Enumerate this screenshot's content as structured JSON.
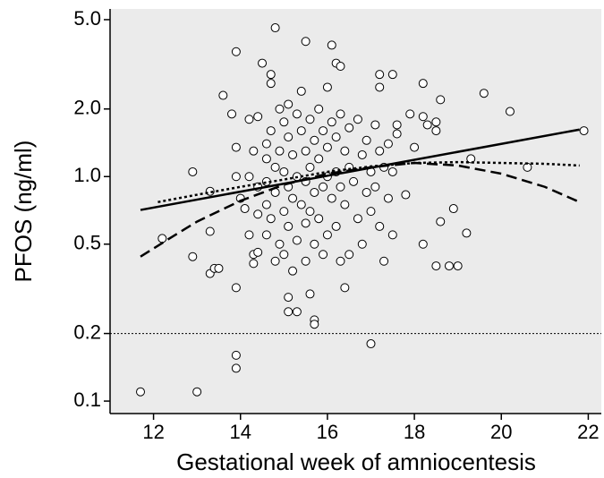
{
  "chart_data": {
    "type": "scatter",
    "x_label": "Gestational week of amniocentesis",
    "y_label": "PFOS (ng/ml)",
    "log_y": true,
    "xlim": [
      11.0,
      22.3
    ],
    "ylim": [
      0.088,
      5.58
    ],
    "xticks": [
      12,
      14,
      16,
      18,
      20,
      22
    ],
    "yticks": [
      {
        "value": 5.0,
        "label": "5.0"
      },
      {
        "value": 2.0,
        "label": "2.0"
      },
      {
        "value": 1.0,
        "label": "1.0"
      },
      0.5,
      0.2,
      0.1
    ],
    "background": "#ebebeb",
    "reference_line": 0.2,
    "x": [
      11.7,
      13.0,
      12.2,
      12.9,
      12.9,
      13.3,
      13.3,
      13.4,
      13.5,
      13.3,
      13.6,
      13.8,
      13.9,
      13.9,
      13.9,
      13.9,
      13.9,
      13.9,
      14.1,
      14.2,
      14.2,
      14.3,
      14.3,
      14.4,
      14.4,
      14.5,
      14.7,
      14.7,
      14.8,
      15.5,
      16.1,
      16.2,
      16.3,
      15.3,
      15.1,
      15.1,
      15.7,
      15.7,
      15.6,
      16.4,
      17.0,
      17.3,
      17.5,
      17.2,
      17.5,
      17.2,
      18.2,
      18.6,
      19.6,
      20.2,
      21.9,
      20.6,
      19.3,
      19.2,
      18.9,
      18.6,
      18.5,
      18.8,
      19.0,
      18.2,
      17.8,
      18.2,
      18.3,
      18.5,
      18.5,
      17.6,
      17.6,
      17.5,
      17.9,
      18.0,
      14.6,
      14.6,
      14.6,
      14.6,
      14.6,
      14.7,
      14.7,
      14.8,
      14.8,
      14.8,
      14.9,
      14.9,
      14.9,
      15.0,
      15.0,
      15.0,
      15.0,
      15.1,
      15.1,
      15.1,
      15.1,
      15.2,
      15.2,
      15.2,
      15.3,
      15.3,
      15.3,
      15.4,
      15.4,
      15.4,
      15.5,
      15.5,
      15.5,
      15.5,
      15.6,
      15.6,
      15.6,
      15.7,
      15.7,
      15.7,
      15.8,
      15.8,
      15.8,
      15.9,
      15.9,
      15.9,
      16.0,
      16.0,
      16.0,
      16.0,
      16.1,
      16.1,
      16.2,
      16.2,
      16.2,
      16.3,
      16.3,
      16.3,
      16.4,
      16.4,
      16.5,
      16.5,
      16.5,
      16.6,
      16.7,
      16.7,
      16.8,
      16.8,
      16.9,
      16.9,
      17.0,
      17.0,
      17.1,
      17.1,
      17.2,
      17.2,
      17.3,
      17.4,
      17.4,
      14.4,
      14.3,
      14.0,
      14.2,
      14.4
    ],
    "values": [
      0.11,
      0.11,
      0.53,
      1.05,
      0.44,
      0.57,
      0.37,
      0.39,
      0.39,
      0.86,
      2.3,
      1.9,
      3.6,
      0.32,
      0.16,
      0.14,
      1.35,
      1.0,
      0.72,
      1.8,
      1.0,
      0.45,
      0.41,
      1.85,
      0.46,
      3.2,
      2.85,
      2.6,
      4.6,
      4.0,
      3.85,
      3.2,
      3.1,
      0.25,
      0.25,
      0.29,
      0.23,
      0.22,
      0.3,
      0.32,
      0.18,
      0.42,
      0.55,
      2.85,
      2.85,
      2.5,
      2.6,
      2.2,
      2.35,
      1.95,
      1.6,
      1.1,
      1.2,
      0.56,
      0.72,
      0.63,
      0.4,
      0.4,
      0.4,
      0.5,
      0.83,
      1.85,
      1.7,
      1.75,
      1.6,
      1.7,
      1.55,
      1.05,
      1.9,
      1.35,
      1.4,
      1.2,
      0.95,
      0.75,
      0.55,
      1.6,
      0.65,
      1.1,
      0.85,
      0.42,
      2.0,
      1.3,
      0.5,
      1.75,
      1.05,
      0.7,
      0.45,
      2.1,
      1.5,
      0.9,
      0.6,
      1.25,
      0.8,
      0.38,
      1.9,
      1.0,
      0.52,
      2.4,
      1.6,
      0.75,
      1.3,
      0.95,
      0.62,
      0.42,
      1.8,
      1.1,
      0.7,
      1.45,
      0.85,
      0.5,
      2.0,
      1.2,
      0.65,
      1.6,
      0.9,
      0.45,
      2.5,
      1.35,
      1.0,
      0.55,
      1.75,
      0.8,
      1.5,
      1.05,
      0.6,
      1.9,
      0.9,
      0.42,
      1.3,
      0.75,
      1.65,
      1.1,
      0.45,
      0.95,
      1.8,
      0.65,
      1.25,
      0.5,
      1.45,
      0.85,
      1.05,
      0.7,
      1.7,
      0.9,
      1.3,
      0.6,
      1.1,
      1.4,
      0.8,
      0.9,
      1.3,
      0.8,
      0.55,
      0.68
    ],
    "fits": [
      {
        "style": "solid",
        "x": [
          11.7,
          21.8
        ],
        "values": [
          0.71,
          1.62
        ]
      },
      {
        "style": "dotted",
        "x": [
          12.1,
          13,
          14,
          15,
          16,
          17,
          18,
          19,
          20,
          21,
          21.8
        ],
        "values": [
          0.77,
          0.83,
          0.9,
          0.97,
          1.05,
          1.11,
          1.15,
          1.16,
          1.15,
          1.14,
          1.12
        ]
      },
      {
        "style": "dashed",
        "x": [
          11.7,
          12.5,
          13,
          14,
          15,
          16,
          17,
          18,
          19,
          20,
          21,
          21.8
        ],
        "values": [
          0.44,
          0.55,
          0.63,
          0.78,
          0.92,
          1.03,
          1.1,
          1.15,
          1.12,
          1.03,
          0.9,
          0.77
        ]
      }
    ]
  }
}
